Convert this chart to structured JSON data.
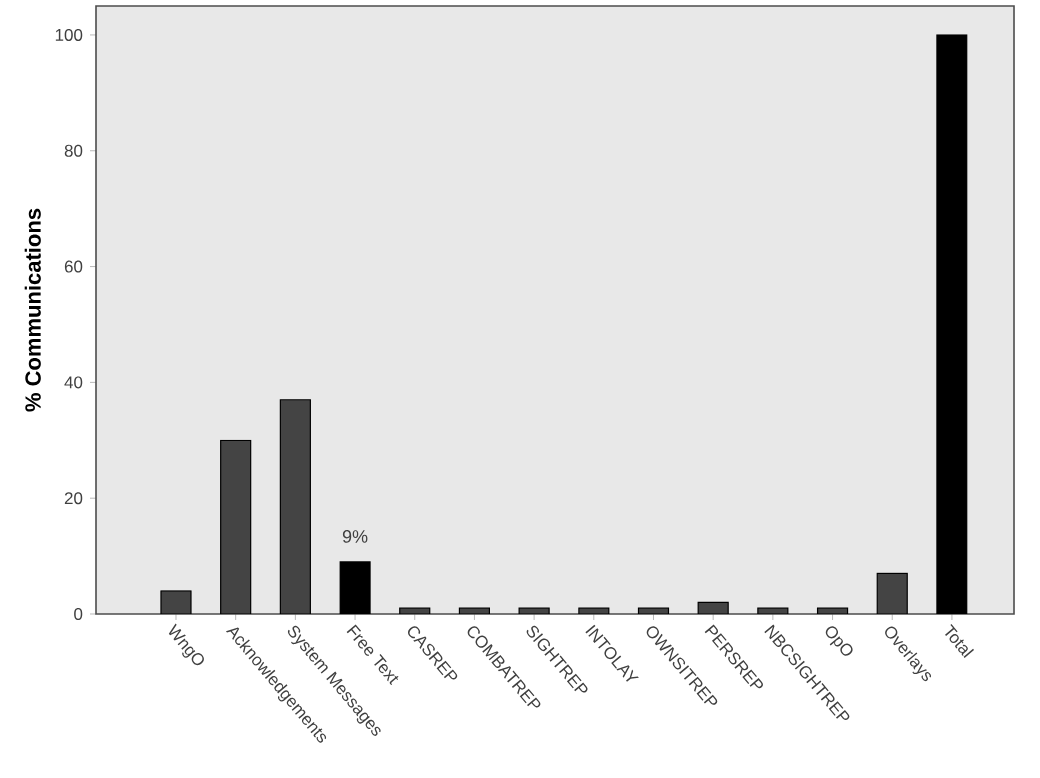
{
  "chart_data": {
    "type": "bar",
    "ylabel": "% Communications",
    "categories": [
      "WngO",
      "Acknowledgements",
      "System Messages",
      "Free Text",
      "CASREP",
      "COMBATREP",
      "SIGHTREP",
      "INTOLAY",
      "OWNSITREP",
      "PERSREP",
      "NBCSIGHTREP",
      "OpO",
      "Overlays",
      "Total"
    ],
    "values": [
      4,
      30,
      37,
      9,
      1,
      1,
      1,
      1,
      1,
      2,
      1,
      1,
      7,
      100
    ],
    "colors": [
      "#444444",
      "#444444",
      "#444444",
      "#000000",
      "#444444",
      "#444444",
      "#444444",
      "#444444",
      "#444444",
      "#444444",
      "#444444",
      "#444444",
      "#444444",
      "#000000"
    ],
    "value_labels": [
      null,
      null,
      null,
      "9%",
      null,
      null,
      null,
      null,
      null,
      null,
      null,
      null,
      null,
      null
    ],
    "ylim": [
      0,
      105
    ],
    "yticks": [
      0,
      20,
      40,
      60,
      80,
      100
    ],
    "grid": false
  }
}
